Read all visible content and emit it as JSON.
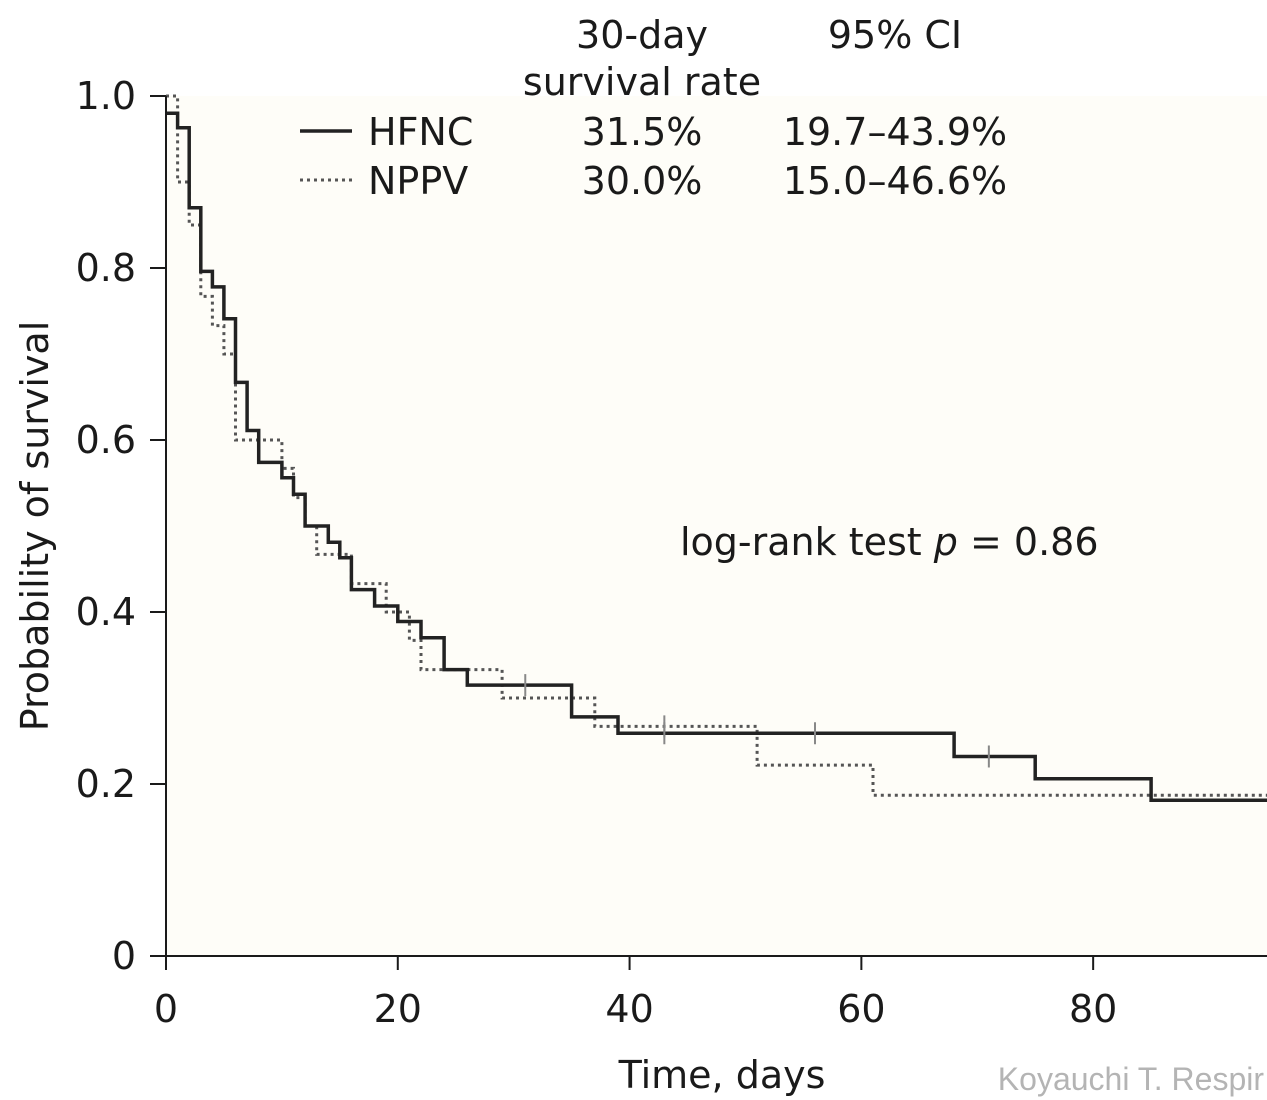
{
  "chart_data": {
    "type": "line",
    "xlabel": "Time, days",
    "ylabel": "Probability of survival",
    "xlim": [
      0,
      95
    ],
    "ylim": [
      0,
      1.0
    ],
    "x_ticks": [
      0,
      20,
      40,
      60,
      80
    ],
    "x_tick_labels": [
      "0",
      "20",
      "40",
      "60",
      "80"
    ],
    "y_ticks": [
      0,
      0.2,
      0.4,
      0.6,
      0.8,
      1.0
    ],
    "y_tick_labels": [
      "0",
      "0.2",
      "0.4",
      "0.6",
      "0.8",
      "1.0"
    ],
    "grid": false,
    "legend_placement": "top-center",
    "legend_headers": {
      "rate": [
        "30-day",
        "survival rate"
      ],
      "ci": "95% CI"
    },
    "series": [
      {
        "name": "HFNC",
        "style": "solid",
        "color": "#222222",
        "rate": "31.5%",
        "ci": "19.7–43.9%",
        "x": [
          0,
          1,
          2,
          3,
          4,
          5,
          6,
          7,
          8,
          10,
          11,
          12,
          14,
          15,
          16,
          18,
          20,
          22,
          24,
          26,
          35,
          36,
          39,
          68,
          75,
          85,
          95
        ],
        "y": [
          0.98,
          0.963,
          0.87,
          0.796,
          0.778,
          0.741,
          0.667,
          0.611,
          0.574,
          0.556,
          0.537,
          0.5,
          0.481,
          0.463,
          0.426,
          0.407,
          0.389,
          0.37,
          0.333,
          0.315,
          0.278,
          0.278,
          0.259,
          0.232,
          0.206,
          0.181,
          0.181
        ],
        "censor_x": [
          31,
          43,
          56,
          71
        ]
      },
      {
        "name": "NPPV",
        "style": "dotted",
        "color": "#555555",
        "rate": "30.0%",
        "ci": "15.0–46.6%",
        "x": [
          0,
          1,
          2,
          3,
          4,
          5,
          6,
          9,
          10,
          11,
          12,
          13,
          16,
          17,
          19,
          21,
          22,
          25,
          29,
          35,
          37,
          51,
          61,
          95
        ],
        "y": [
          1.0,
          0.9,
          0.85,
          0.767,
          0.733,
          0.7,
          0.6,
          0.6,
          0.567,
          0.533,
          0.5,
          0.467,
          0.433,
          0.433,
          0.4,
          0.367,
          0.333,
          0.333,
          0.3,
          0.3,
          0.267,
          0.222,
          0.187,
          0.187
        ],
        "censor_x": [
          43
        ]
      }
    ],
    "annotation": {
      "prefix": "log-rank test ",
      "italic": "p",
      "suffix": " = 0.86"
    }
  },
  "credit": "Koyauchi T. Respir"
}
